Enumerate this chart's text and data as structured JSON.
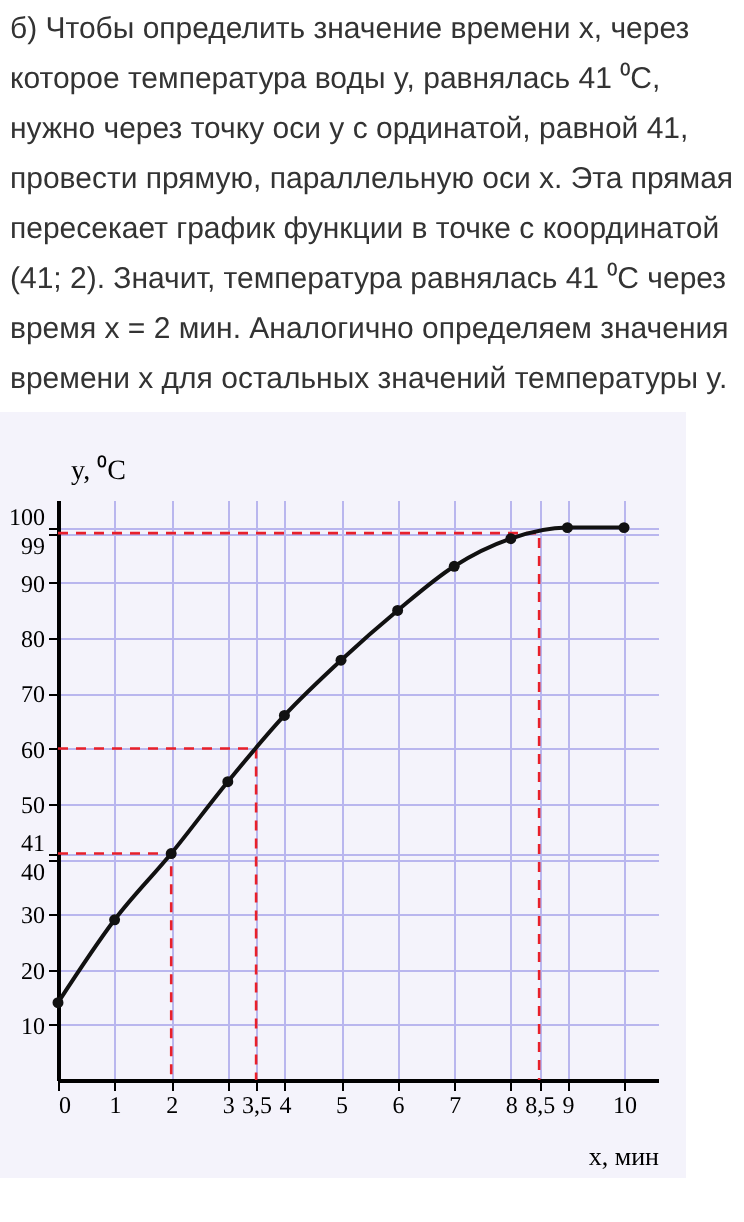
{
  "chart_data": {
    "type": "line",
    "title": "б) Чтобы определить значение времени x, через которое температура воды  y, равнялась 41 ⁰С, нужно через точку оси y с ординатой, равной 41, провести прямую, параллельную оси x. Эта прямая пересекает график функции в точке с координатой (41; 2). Значит, температура равнялась 41 ⁰С через время x = 2 мин. Аналогично определяем значения времени x для остальных значений температуры y.",
    "xlabel": "x, мин",
    "ylabel": "y, ⁰C",
    "x": [
      0,
      1,
      2,
      3,
      4,
      5,
      6,
      7,
      8,
      9,
      10
    ],
    "series": [
      {
        "color": "#111111",
        "marker": "circle",
        "line_style": "solid",
        "values": [
          14,
          29,
          41,
          54,
          66,
          76,
          85,
          93,
          98,
          100,
          100
        ]
      },
      {
        "type": "line",
        "x": [
          0,
          2,
          2
        ],
        "values": [
          41,
          41,
          0
        ],
        "color": "#e8202a",
        "line_style": "dashed",
        "marker": "none"
      },
      {
        "type": "line",
        "x": [
          0,
          3.5,
          3.5
        ],
        "values": [
          60,
          60,
          0
        ],
        "color": "#e8202a",
        "line_style": "dashed",
        "marker": "none"
      },
      {
        "type": "line",
        "x": [
          0,
          8.5,
          8.5
        ],
        "values": [
          99,
          99,
          0
        ],
        "color": "#e8202a",
        "line_style": "dashed",
        "marker": "none"
      }
    ],
    "xlim": [
      0,
      10.6
    ],
    "ylim": [
      0,
      105
    ],
    "xticks": [
      0,
      1,
      2,
      3,
      {
        "value": 3.5,
        "label": "3,5"
      },
      4,
      5,
      6,
      7,
      8,
      {
        "value": 8.5,
        "label": "8,5"
      },
      9,
      10
    ],
    "yticks": [
      10,
      20,
      30,
      40,
      41,
      50,
      60,
      70,
      80,
      90,
      99,
      100
    ],
    "grid": true
  }
}
